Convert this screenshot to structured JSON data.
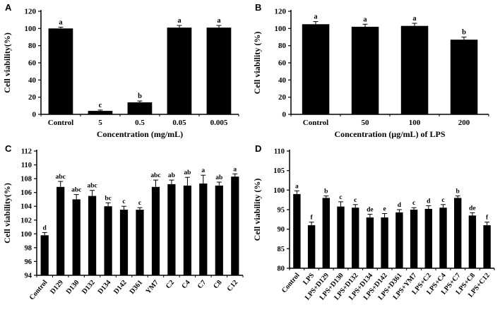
{
  "chart_data": [
    {
      "type": "bar",
      "panel": "A",
      "title": "",
      "xlabel": "Concentration (mg/mL)",
      "ylabel": "Cell viability(%)",
      "ylim": [
        0,
        120
      ],
      "ytick_step": 20,
      "grid": false,
      "bar_color": "#000000",
      "categories": [
        "Control",
        "5",
        "0.5",
        "0.05",
        "0.005"
      ],
      "values": [
        100,
        4,
        14,
        101,
        101
      ],
      "errors": [
        1.5,
        1,
        1.5,
        2.5,
        2.5
      ],
      "sig_letters": [
        "a",
        "c",
        "b",
        "a",
        "a"
      ]
    },
    {
      "type": "bar",
      "panel": "B",
      "title": "",
      "xlabel": "Concentration (μg/mL) of LPS",
      "ylabel": "Cell viability (%)",
      "ylim": [
        0,
        120
      ],
      "ytick_step": 20,
      "grid": false,
      "bar_color": "#000000",
      "categories": [
        "Control",
        "50",
        "100",
        "200"
      ],
      "values": [
        105,
        102,
        103,
        87
      ],
      "errors": [
        3,
        3,
        3,
        3
      ],
      "sig_letters": [
        "a",
        "a",
        "a",
        "b"
      ]
    },
    {
      "type": "bar",
      "panel": "C",
      "title": "",
      "xlabel": "",
      "ylabel": "Cell  viability(%)",
      "ylim": [
        94,
        112
      ],
      "ytick_step": 2,
      "grid": false,
      "bar_color": "#000000",
      "categories": [
        "Control",
        "D129",
        "D130",
        "D132",
        "D134",
        "D142",
        "D361",
        "YM7",
        "C2",
        "C4",
        "C7",
        "C8",
        "C12"
      ],
      "values": [
        99.8,
        106.8,
        105.0,
        105.5,
        104.0,
        103.5,
        103.5,
        106.8,
        107.2,
        107.0,
        107.3,
        107.0,
        108.3
      ],
      "errors": [
        0.4,
        0.8,
        0.7,
        0.8,
        0.5,
        0.5,
        0.3,
        1.0,
        0.6,
        1.2,
        1.2,
        0.5,
        0.4
      ],
      "sig_letters": [
        "d",
        "abc",
        "abc",
        "abc",
        "bc",
        "c",
        "c",
        "abc",
        "ab",
        "ab",
        "a",
        "ab",
        "a"
      ]
    },
    {
      "type": "bar",
      "panel": "D",
      "title": "",
      "xlabel": "",
      "ylabel": "Cell viability (%)",
      "ylim": [
        80,
        110
      ],
      "ytick_step": 5,
      "grid": false,
      "bar_color": "#000000",
      "categories": [
        "Control",
        "LPS",
        "LPS+D129",
        "LPS+D130",
        "LPS+D132",
        "LPS+D134",
        "LPS+D142",
        "LPS+D361",
        "LPS+YM7",
        "LPS+C2",
        "LPS+C4",
        "LPS+C7",
        "LPS+C8",
        "LPS+C12"
      ],
      "values": [
        99,
        91,
        98,
        95.8,
        95.5,
        93,
        93,
        94.3,
        95,
        95.2,
        95.5,
        98,
        93.5,
        91
      ],
      "errors": [
        0.8,
        0.8,
        0.5,
        1.2,
        0.8,
        0.8,
        1.0,
        0.7,
        0.5,
        0.8,
        0.8,
        0.5,
        0.7,
        0.8
      ],
      "sig_letters": [
        "a",
        "f",
        "b",
        "c",
        "c",
        "de",
        "e",
        "d",
        "c",
        "d",
        "c",
        "b",
        "de",
        "f"
      ]
    }
  ]
}
